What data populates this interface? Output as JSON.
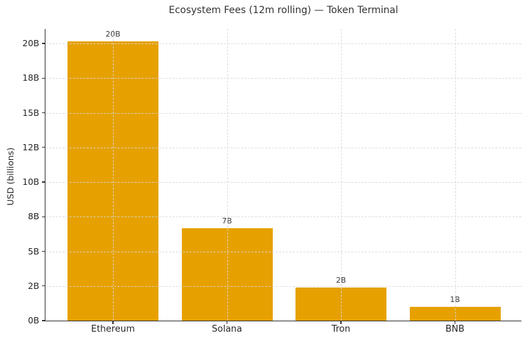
{
  "chart_data": {
    "type": "bar",
    "title": "Ecosystem Fees (12m rolling) — Token Terminal",
    "xlabel": "",
    "ylabel": "USD (billions)",
    "categories": [
      "Ethereum",
      "Solana",
      "Tron",
      "BNB"
    ],
    "values": [
      20,
      7,
      2,
      1
    ],
    "bar_labels": [
      "20B",
      "7B",
      "2B",
      "1B"
    ],
    "values_est_from_bar_heights": [
      20.1,
      7.0,
      1.9,
      0.8
    ],
    "series_name": "Ecosystem fees",
    "y_ticks": {
      "values": [
        0,
        2,
        5,
        8,
        10,
        12,
        15,
        18,
        20
      ],
      "labels": [
        "0B",
        "2B",
        "5B",
        "8B",
        "10B",
        "12B",
        "15B",
        "18B",
        "20B"
      ],
      "note": "tick marks are evenly spaced on the axis (non-linear value scale)"
    },
    "ylim_top_label": "20B",
    "grid": true,
    "grid_style": "dashed",
    "legend": false,
    "colors": {
      "bar": "#E6A100",
      "grid": "#D7D7D7",
      "axis": "#333333",
      "text": "#262626",
      "background": "#FFFFFF"
    }
  }
}
